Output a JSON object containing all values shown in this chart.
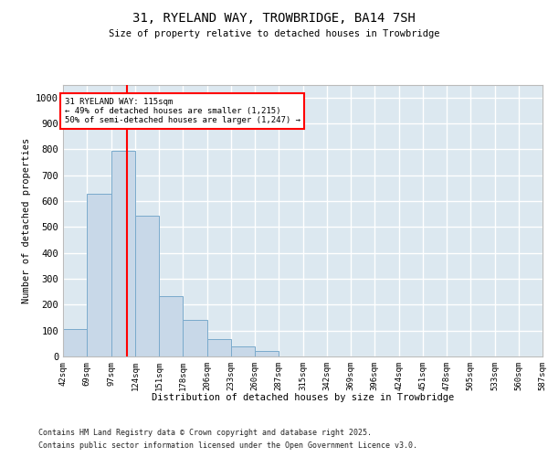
{
  "title_line1": "31, RYELAND WAY, TROWBRIDGE, BA14 7SH",
  "title_line2": "Size of property relative to detached houses in Trowbridge",
  "xlabel": "Distribution of detached houses by size in Trowbridge",
  "ylabel": "Number of detached properties",
  "bar_left_edges": [
    42,
    69,
    97,
    124,
    151,
    178,
    206,
    233,
    260,
    287,
    315,
    342,
    369,
    396,
    424,
    451,
    478,
    505,
    533,
    560
  ],
  "bar_widths": [
    27,
    28,
    27,
    27,
    27,
    28,
    27,
    27,
    27,
    28,
    27,
    27,
    27,
    28,
    27,
    27,
    27,
    28,
    27,
    27
  ],
  "bar_heights": [
    107,
    627,
    795,
    543,
    233,
    140,
    68,
    40,
    20,
    0,
    0,
    0,
    0,
    0,
    0,
    0,
    0,
    0,
    0,
    0
  ],
  "bar_color": "#c8d8e8",
  "bar_edgecolor": "#7aaacc",
  "tick_labels": [
    "42sqm",
    "69sqm",
    "97sqm",
    "124sqm",
    "151sqm",
    "178sqm",
    "206sqm",
    "233sqm",
    "260sqm",
    "287sqm",
    "315sqm",
    "342sqm",
    "369sqm",
    "396sqm",
    "424sqm",
    "451sqm",
    "478sqm",
    "505sqm",
    "533sqm",
    "560sqm",
    "587sqm"
  ],
  "ylim": [
    0,
    1050
  ],
  "yticks": [
    0,
    100,
    200,
    300,
    400,
    500,
    600,
    700,
    800,
    900,
    1000
  ],
  "red_line_x": 115,
  "annotation_text": "31 RYELAND WAY: 115sqm\n← 49% of detached houses are smaller (1,215)\n50% of semi-detached houses are larger (1,247) →",
  "footer_line1": "Contains HM Land Registry data © Crown copyright and database right 2025.",
  "footer_line2": "Contains public sector information licensed under the Open Government Licence v3.0.",
  "bg_color": "#ffffff",
  "plot_bg_color": "#dce8f0",
  "grid_color": "#ffffff"
}
